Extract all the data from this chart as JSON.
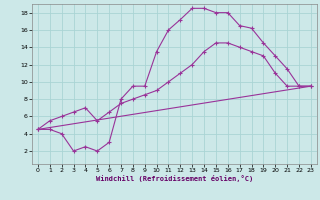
{
  "background_color": "#cce8e8",
  "grid_color": "#aad4d4",
  "line_color": "#993399",
  "xlim": [
    -0.5,
    23.5
  ],
  "ylim": [
    0.5,
    19.0
  ],
  "xticks": [
    0,
    1,
    2,
    3,
    4,
    5,
    6,
    7,
    8,
    9,
    10,
    11,
    12,
    13,
    14,
    15,
    16,
    17,
    18,
    19,
    20,
    21,
    22,
    23
  ],
  "yticks": [
    2,
    4,
    6,
    8,
    10,
    12,
    14,
    16,
    18
  ],
  "xlabel": "Windchill (Refroidissement éolien,°C)",
  "curve1_x": [
    0,
    1,
    2,
    3,
    4,
    5,
    6,
    7,
    8,
    9,
    10,
    11,
    12,
    13,
    14,
    15,
    16,
    17,
    18,
    19,
    20,
    21,
    22,
    23
  ],
  "curve1_y": [
    4.5,
    4.5,
    4.0,
    2.0,
    2.5,
    2.0,
    3.0,
    8.0,
    9.5,
    9.5,
    13.5,
    16.0,
    17.2,
    18.5,
    18.5,
    18.0,
    18.0,
    16.5,
    16.2,
    14.5,
    13.0,
    11.5,
    9.5,
    9.5
  ],
  "curve2_x": [
    0,
    1,
    2,
    3,
    4,
    5,
    6,
    7,
    8,
    9,
    10,
    11,
    12,
    13,
    14,
    15,
    16,
    17,
    18,
    19,
    20,
    21,
    22,
    23
  ],
  "curve2_y": [
    4.5,
    5.5,
    6.0,
    6.5,
    7.0,
    5.5,
    6.5,
    7.5,
    8.0,
    8.5,
    9.0,
    10.0,
    11.0,
    12.0,
    13.5,
    14.5,
    14.5,
    14.0,
    13.5,
    13.0,
    11.0,
    9.5,
    9.5,
    9.5
  ],
  "curve3_x": [
    0,
    23
  ],
  "curve3_y": [
    4.5,
    9.5
  ]
}
